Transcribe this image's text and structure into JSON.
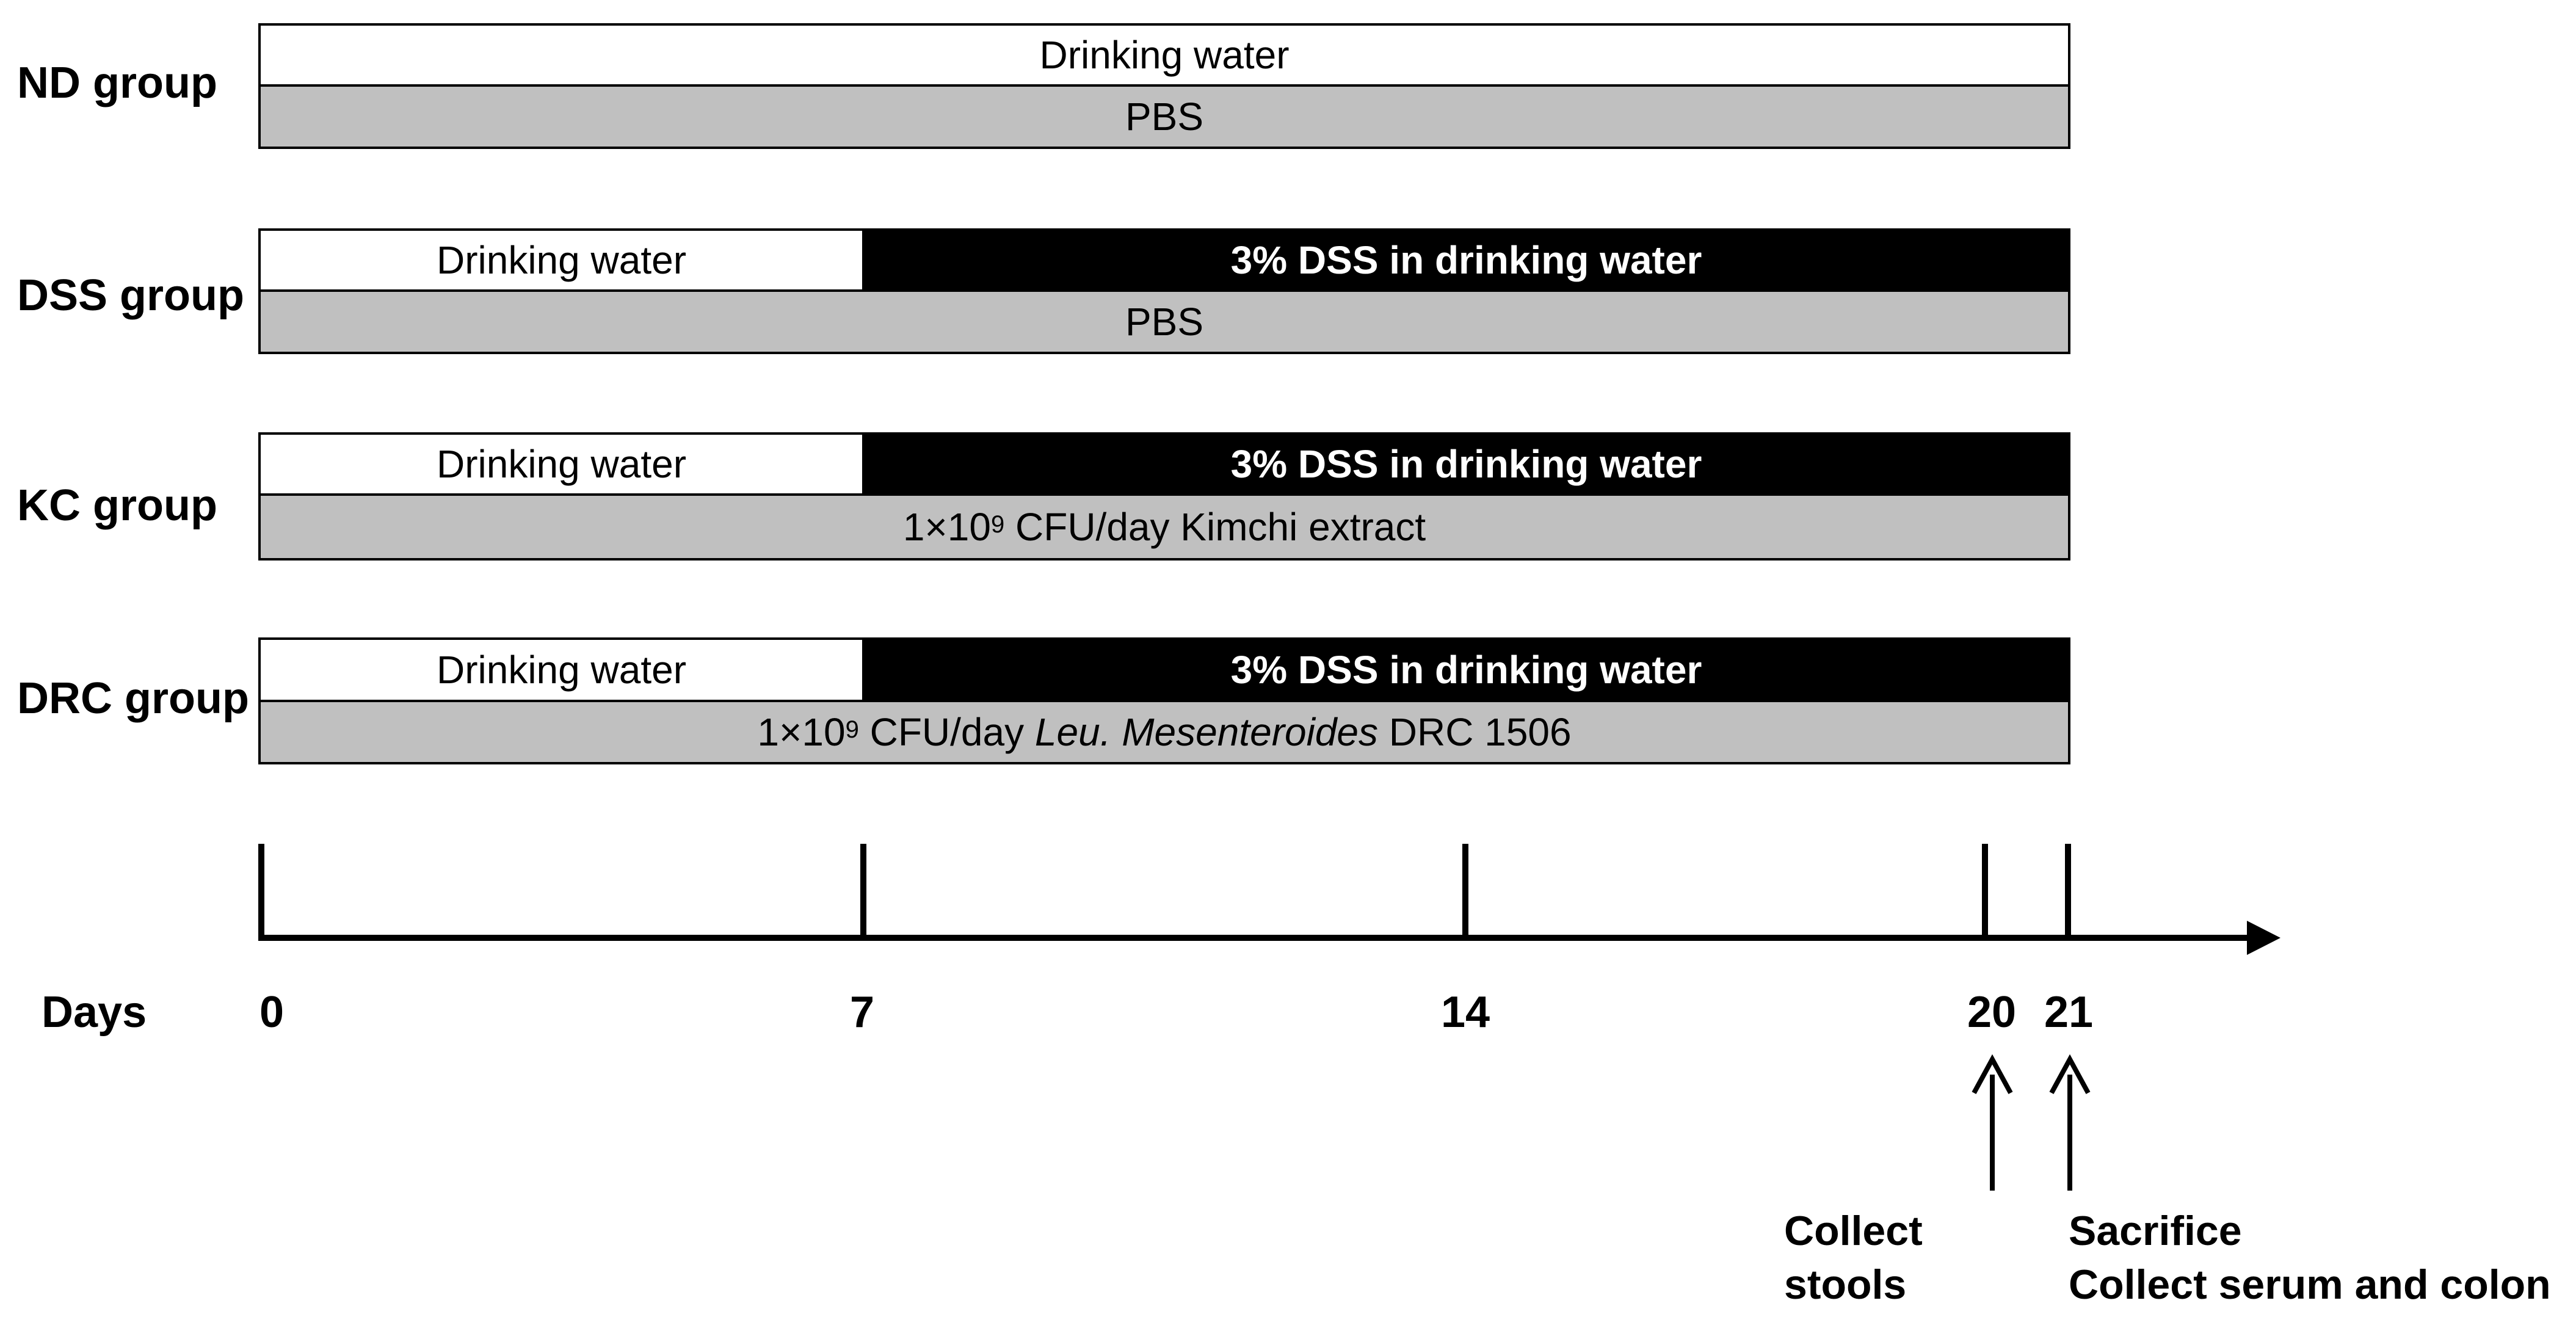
{
  "groups": [
    {
      "label": "ND group",
      "top_bar": {
        "segments": [
          {
            "text": "Drinking water",
            "style": "white",
            "from_day": 0,
            "to_day": 21
          }
        ]
      },
      "bottom_bar": {
        "text": "PBS"
      }
    },
    {
      "label": "DSS group",
      "top_bar": {
        "segments": [
          {
            "text": "Drinking water",
            "style": "white",
            "from_day": 0,
            "to_day": 7
          },
          {
            "text": "3% DSS in drinking water",
            "style": "black",
            "from_day": 7,
            "to_day": 21
          }
        ]
      },
      "bottom_bar": {
        "text": "PBS"
      }
    },
    {
      "label": "KC group",
      "top_bar": {
        "segments": [
          {
            "text": "Drinking water",
            "style": "white",
            "from_day": 0,
            "to_day": 7
          },
          {
            "text": "3% DSS in drinking water",
            "style": "black",
            "from_day": 7,
            "to_day": 21
          }
        ]
      },
      "bottom_bar": {
        "prefix": "1×10",
        "exponent": "9",
        "middle": " CFU/day Kimchi extract",
        "italic": "",
        "suffix": ""
      }
    },
    {
      "label": "DRC group",
      "top_bar": {
        "segments": [
          {
            "text": "Drinking water",
            "style": "white",
            "from_day": 0,
            "to_day": 7
          },
          {
            "text": "3% DSS in drinking water",
            "style": "black",
            "from_day": 7,
            "to_day": 21
          }
        ]
      },
      "bottom_bar": {
        "prefix": "1×10",
        "exponent": "9",
        "middle": " CFU/day ",
        "italic": "Leu. Mesenteroides",
        "suffix": " DRC 1506"
      }
    }
  ],
  "timeline": {
    "axis_label": "Days",
    "ticks": [
      {
        "day": 0,
        "label": "0"
      },
      {
        "day": 7,
        "label": "7"
      },
      {
        "day": 14,
        "label": "14"
      },
      {
        "day": 20,
        "label": "20"
      },
      {
        "day": 21,
        "label": "21"
      }
    ]
  },
  "events": [
    {
      "day": 20,
      "lines": [
        "Collect",
        "stools"
      ]
    },
    {
      "day": 21,
      "lines": [
        "Sacrifice",
        "Collect serum and colon"
      ]
    }
  ],
  "colors": {
    "white_segment": "#ffffff",
    "dss_segment": "#000000",
    "treatment_bar": "#c0c0c0"
  }
}
